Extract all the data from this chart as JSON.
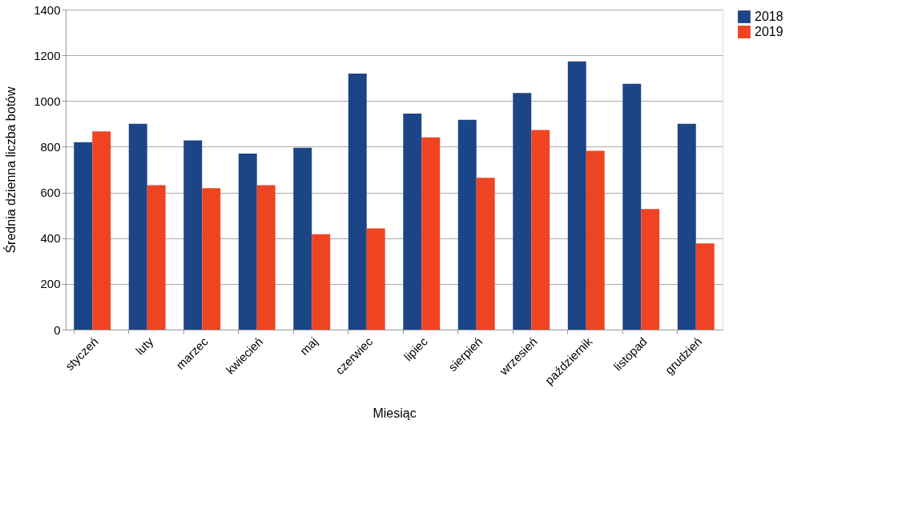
{
  "chart_data": {
    "type": "bar",
    "xlabel": "Miesiąc",
    "ylabel": "Średnia dzienna liczba botów",
    "categories": [
      "styczeń",
      "luty",
      "marzec",
      "kwiecień",
      "maj",
      "czerwiec",
      "lipiec",
      "sierpień",
      "wrzesień",
      "październik",
      "listopad",
      "grudzień"
    ],
    "series": [
      {
        "name": "2018",
        "color": "#1c4587",
        "values": [
          820,
          900,
          828,
          770,
          795,
          1120,
          945,
          918,
          1035,
          1173,
          1075,
          900
        ]
      },
      {
        "name": "2019",
        "color": "#ee4422",
        "values": [
          867,
          632,
          619,
          632,
          417,
          443,
          841,
          664,
          873,
          782,
          528,
          377
        ]
      }
    ],
    "ylim": [
      0,
      1400
    ],
    "yticks": [
      0,
      200,
      400,
      600,
      800,
      1000,
      1200,
      1400
    ],
    "grid": "y",
    "legend": "right"
  }
}
